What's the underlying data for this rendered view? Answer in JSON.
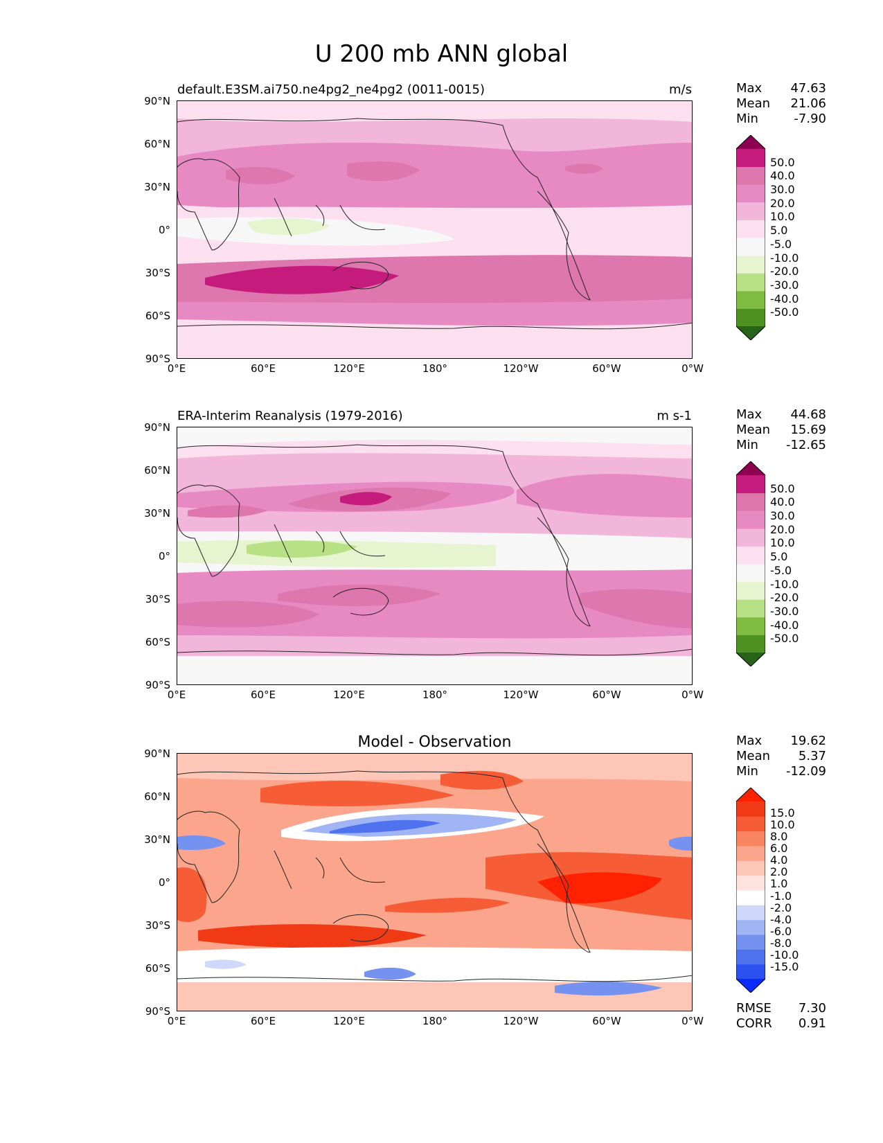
{
  "title": "U 200 mb ANN global",
  "axes": {
    "lat_labels": [
      "90°N",
      "60°N",
      "30°N",
      "0°",
      "30°S",
      "60°S",
      "90°S"
    ],
    "lon_labels": [
      "0°E",
      "60°E",
      "120°E",
      "180°",
      "120°W",
      "60°W",
      "0°W"
    ]
  },
  "panels": [
    {
      "left_title": "default.E3SM.ai750.ne4pg2_ne4pg2 (0011-0015)",
      "right_title": "m/s",
      "center_title": "",
      "stats": [
        {
          "label": "Max",
          "value": "47.63"
        },
        {
          "label": "Mean",
          "value": "21.06"
        },
        {
          "label": "Min",
          "value": "-7.90"
        }
      ],
      "colorbar": {
        "colors": [
          "#276419",
          "#4d9221",
          "#7fbc41",
          "#b8e186",
          "#e6f5d0",
          "#f7f7f7",
          "#fde0ef",
          "#f1b6da",
          "#e78ac3",
          "#de77ae",
          "#c51b7d",
          "#8e0152"
        ],
        "labels": [
          "50.0",
          "40.0",
          "30.0",
          "20.0",
          "10.0",
          "5.0",
          "-5.0",
          "-10.0",
          "-20.0",
          "-30.0",
          "-40.0",
          "-50.0"
        ]
      },
      "footer": []
    },
    {
      "left_title": "ERA-Interim Reanalysis (1979-2016)",
      "right_title": "m s-1",
      "center_title": "",
      "stats": [
        {
          "label": "Max",
          "value": "44.68"
        },
        {
          "label": "Mean",
          "value": "15.69"
        },
        {
          "label": "Min",
          "value": "-12.65"
        }
      ],
      "colorbar": {
        "colors": [
          "#276419",
          "#4d9221",
          "#7fbc41",
          "#b8e186",
          "#e6f5d0",
          "#f7f7f7",
          "#fde0ef",
          "#f1b6da",
          "#e78ac3",
          "#de77ae",
          "#c51b7d",
          "#8e0152"
        ],
        "labels": [
          "50.0",
          "40.0",
          "30.0",
          "20.0",
          "10.0",
          "5.0",
          "-5.0",
          "-10.0",
          "-20.0",
          "-30.0",
          "-40.0",
          "-50.0"
        ]
      },
      "footer": []
    },
    {
      "left_title": "",
      "right_title": "",
      "center_title": "Model - Observation",
      "stats": [
        {
          "label": "Max",
          "value": "19.62"
        },
        {
          "label": "Mean",
          "value": "5.37"
        },
        {
          "label": "Min",
          "value": "-12.09"
        }
      ],
      "colorbar": {
        "colors": [
          "#0a2cff",
          "#2b52f0",
          "#4f73ee",
          "#7592f0",
          "#a1b5f4",
          "#cdd8fa",
          "#ffffff",
          "#ffe3dc",
          "#fdc6b6",
          "#fba58c",
          "#f8855f",
          "#f65c36",
          "#f03a16",
          "#ff2200"
        ],
        "labels": [
          "15.0",
          "10.0",
          "8.0",
          "6.0",
          "4.0",
          "2.0",
          "1.0",
          "-1.0",
          "-2.0",
          "-4.0",
          "-6.0",
          "-8.0",
          "-10.0",
          "-15.0"
        ]
      },
      "footer": [
        {
          "label": "RMSE",
          "value": "7.30"
        },
        {
          "label": "CORR",
          "value": "0.91"
        }
      ]
    }
  ]
}
